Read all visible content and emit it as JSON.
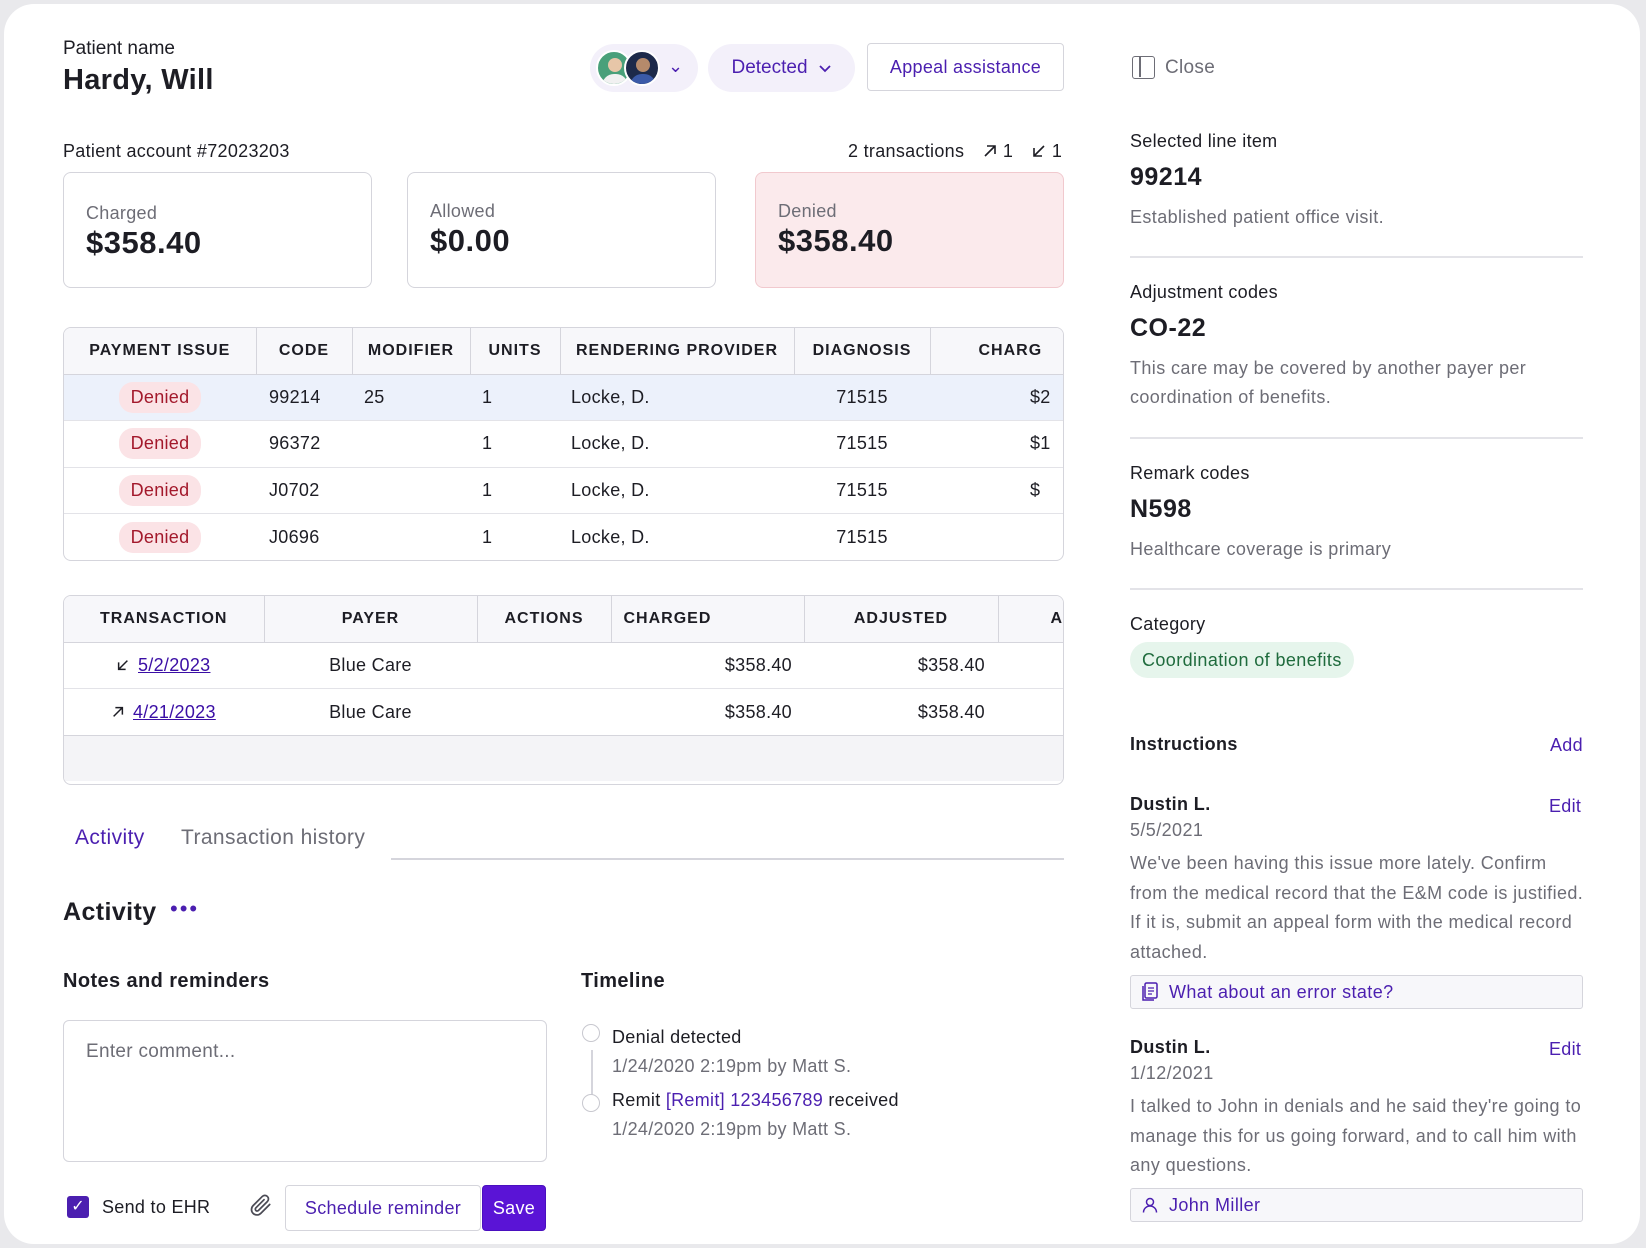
{
  "header": {
    "patient_label": "Patient name",
    "patient_name": "Hardy, Will",
    "status": "Detected",
    "appeal_button": "Appeal assistance"
  },
  "account": {
    "label": "Patient account #72023203",
    "transactions": "2 transactions",
    "outgoing_count": "1",
    "incoming_count": "1"
  },
  "summary": [
    {
      "label": "Charged",
      "value": "$358.40"
    },
    {
      "label": "Allowed",
      "value": "$0.00"
    },
    {
      "label": "Denied",
      "value": "$358.40"
    }
  ],
  "line_items": {
    "columns": [
      "PAYMENT ISSUE",
      "CODE",
      "MODIFIER",
      "UNITS",
      "RENDERING PROVIDER",
      "DIAGNOSIS",
      "CHARG"
    ],
    "rows": [
      {
        "issue": "Denied",
        "code": "99214",
        "modifier": "25",
        "units": "1",
        "provider": "Locke, D.",
        "diagnosis": "71515",
        "charge": "$2"
      },
      {
        "issue": "Denied",
        "code": "96372",
        "modifier": "",
        "units": "1",
        "provider": "Locke, D.",
        "diagnosis": "71515",
        "charge": "$1"
      },
      {
        "issue": "Denied",
        "code": "J0702",
        "modifier": "",
        "units": "1",
        "provider": "Locke, D.",
        "diagnosis": "71515",
        "charge": "$"
      },
      {
        "issue": "Denied",
        "code": "J0696",
        "modifier": "",
        "units": "1",
        "provider": "Locke, D.",
        "diagnosis": "71515",
        "charge": ""
      }
    ]
  },
  "transactions": {
    "columns": [
      "TRANSACTION",
      "PAYER",
      "ACTIONS",
      "CHARGED",
      "ADJUSTED",
      "A"
    ],
    "rows": [
      {
        "direction_icon": "arrow-down-left-icon",
        "date": "5/2/2023",
        "payer": "Blue Care",
        "charged": "$358.40",
        "adjusted": "$358.40"
      },
      {
        "direction_icon": "arrow-up-right-icon",
        "date": "4/21/2023",
        "payer": "Blue Care",
        "charged": "$358.40",
        "adjusted": "$358.40"
      }
    ]
  },
  "tabs": [
    "Activity",
    "Transaction history"
  ],
  "activity": {
    "title": "Activity",
    "notes_title": "Notes and reminders",
    "comment_placeholder": "Enter comment...",
    "send_to_ehr": "Send to EHR",
    "send_to_ehr_checked": true,
    "schedule_button": "Schedule reminder",
    "save_button": "Save"
  },
  "timeline": {
    "title": "Timeline",
    "events": [
      {
        "title": "Denial detected",
        "meta": "1/24/2020 2:19pm by Matt S."
      },
      {
        "title_prefix": "Remit",
        "title_link": "[Remit] 123456789",
        "title_suffix": "received",
        "meta": "1/24/2020 2:19pm by Matt S."
      }
    ]
  },
  "panel": {
    "close_label": "Close",
    "selected_label": "Selected line item",
    "selected_code": "99214",
    "selected_desc": "Established patient office visit.",
    "adjustment_label": "Adjustment codes",
    "adjustment_code": "CO-22",
    "adjustment_desc": "This care may be covered by another payer per coordination of benefits.",
    "remark_label": "Remark codes",
    "remark_code": "N598",
    "remark_desc": "Healthcare coverage is primary",
    "category_label": "Category",
    "category_value": "Coordination of benefits",
    "instructions_title": "Instructions",
    "add_label": "Add",
    "notes": [
      {
        "author": "Dustin L.",
        "date": "5/5/2021",
        "edit": "Edit",
        "body": "We've been having this issue more lately. Confirm from the medical record that the E&M code is justified. If it is, submit an appeal form with the medical record attached.",
        "chip": "What about an error state?",
        "chip_icon": "document-icon"
      },
      {
        "author": "Dustin L.",
        "date": "1/12/2021",
        "edit": "Edit",
        "body": "I talked to John in denials and he said they're going to manage this for us going forward, and to call him with any questions.",
        "chip": "John Miller",
        "chip_icon": "person-icon"
      }
    ]
  },
  "colors": {
    "accent": "#4b1fb0",
    "denied_bg": "#fbeaec",
    "category_bg": "#e6f5ec"
  }
}
